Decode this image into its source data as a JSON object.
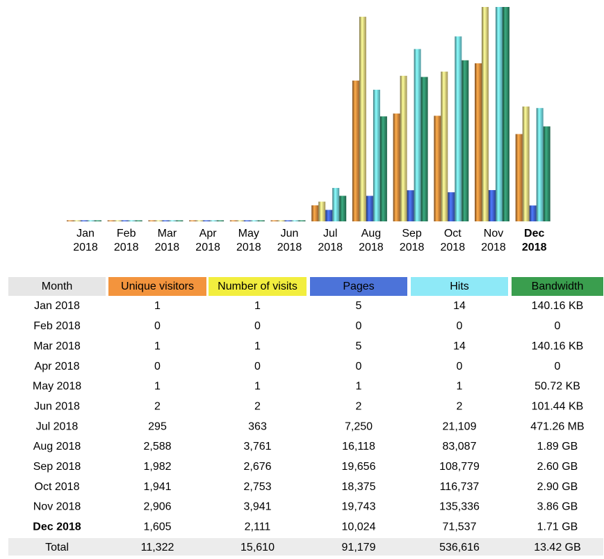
{
  "chart_data": {
    "type": "bar",
    "month_header": "Month",
    "total_label": "Total",
    "highlight_index": 11,
    "categories": [
      "Jan 2018",
      "Feb 2018",
      "Mar 2018",
      "Apr 2018",
      "May 2018",
      "Jun 2018",
      "Jul 2018",
      "Aug 2018",
      "Sep 2018",
      "Oct 2018",
      "Nov 2018",
      "Dec 2018"
    ],
    "series": [
      {
        "name": "Unique visitors",
        "color": "#e08a3c",
        "header_color": "#f3943d",
        "scale_group": "visits",
        "values": [
          1,
          0,
          1,
          0,
          1,
          2,
          295,
          2588,
          1982,
          1941,
          2906,
          1605
        ],
        "value_labels": [
          "1",
          "0",
          "1",
          "0",
          "1",
          "2",
          "295",
          "2,588",
          "1,982",
          "1,941",
          "2,906",
          "1,605"
        ],
        "total": 11322,
        "total_label": "11,322"
      },
      {
        "name": "Number of visits",
        "color": "#e3cf7c",
        "header_color": "#f2ee3e",
        "scale_group": "visits",
        "values": [
          1,
          0,
          1,
          0,
          1,
          2,
          363,
          3761,
          2676,
          2753,
          3941,
          2111
        ],
        "value_labels": [
          "1",
          "0",
          "1",
          "0",
          "1",
          "2",
          "363",
          "3,761",
          "2,676",
          "2,753",
          "3,941",
          "2,111"
        ],
        "total": 15610,
        "total_label": "15,610"
      },
      {
        "name": "Pages",
        "color": "#3f62d0",
        "header_color": "#4c73d9",
        "scale_group": "hits",
        "values": [
          5,
          0,
          5,
          0,
          1,
          2,
          7250,
          16118,
          19656,
          18375,
          19743,
          10024
        ],
        "value_labels": [
          "5",
          "0",
          "5",
          "0",
          "1",
          "2",
          "7,250",
          "16,118",
          "19,656",
          "18,375",
          "19,743",
          "10,024"
        ],
        "total": 91179,
        "total_label": "91,179"
      },
      {
        "name": "Hits",
        "color": "#6fd8e2",
        "header_color": "#8ee9f7",
        "scale_group": "hits",
        "values": [
          14,
          0,
          14,
          0,
          1,
          2,
          21109,
          83087,
          108779,
          116737,
          135336,
          71537
        ],
        "value_labels": [
          "14",
          "0",
          "14",
          "0",
          "1",
          "2",
          "21,109",
          "83,087",
          "108,779",
          "116,737",
          "135,336",
          "71,537"
        ],
        "total": 536616,
        "total_label": "536,616"
      },
      {
        "name": "Bandwidth",
        "color": "#2f8a68",
        "header_color": "#3a9e4e",
        "scale_group": "bandwidth",
        "values": [
          143524,
          0,
          143524,
          0,
          51937,
          103875,
          494151926,
          2029372047,
          2791728742,
          3113851290,
          4144643441,
          1836098519
        ],
        "value_labels": [
          "140.16 KB",
          "0",
          "140.16 KB",
          "0",
          "50.72 KB",
          "101.44 KB",
          "471.26 MB",
          "1.89 GB",
          "2.60 GB",
          "2.90 GB",
          "3.86 GB",
          "1.71 GB"
        ],
        "total": 14409615278,
        "total_label": "13.42 GB"
      }
    ]
  }
}
